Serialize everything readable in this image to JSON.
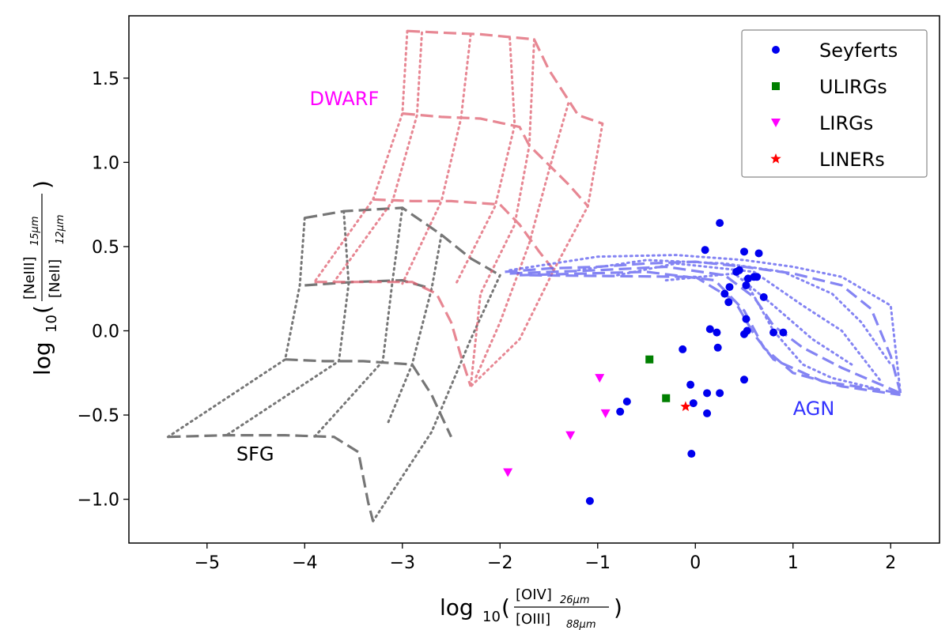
{
  "chart_data": {
    "type": "scatter",
    "title": "",
    "xlabel": {
      "prefix": "log",
      "base": "10",
      "numerator": "[OIV]",
      "numerator_sub": "26μm",
      "denominator": "[OIII]",
      "denominator_sub": "88μm"
    },
    "ylabel": {
      "prefix": "log",
      "base": "10",
      "numerator": "[NeIII]",
      "numerator_sub": "15μm",
      "denominator": "[NeII]",
      "denominator_sub": "12μm"
    },
    "xlim": [
      -5.8,
      2.5
    ],
    "ylim": [
      -1.26,
      1.87
    ],
    "xticks": [
      -5,
      -4,
      -3,
      -2,
      -1,
      0,
      1,
      2
    ],
    "xtick_labels": [
      "−5",
      "−4",
      "−3",
      "−2",
      "−1",
      "0",
      "1",
      "2"
    ],
    "yticks": [
      -1.0,
      -0.5,
      0.0,
      0.5,
      1.0,
      1.5
    ],
    "ytick_labels": [
      "−1.0",
      "−0.5",
      "0.0",
      "0.5",
      "1.0",
      "1.5"
    ],
    "legend_position": "top-right",
    "series": [
      {
        "name": "Seyferts",
        "marker": "circle",
        "color": "#0000ee",
        "points": [
          [
            0.25,
            0.64
          ],
          [
            0.1,
            0.48
          ],
          [
            0.5,
            0.47
          ],
          [
            0.65,
            0.46
          ],
          [
            0.45,
            0.36
          ],
          [
            0.42,
            0.35
          ],
          [
            0.6,
            0.32
          ],
          [
            0.63,
            0.32
          ],
          [
            0.54,
            0.31
          ],
          [
            0.52,
            0.27
          ],
          [
            0.35,
            0.26
          ],
          [
            0.3,
            0.22
          ],
          [
            0.7,
            0.2
          ],
          [
            0.34,
            0.17
          ],
          [
            0.52,
            0.07
          ],
          [
            0.15,
            0.01
          ],
          [
            0.22,
            -0.01
          ],
          [
            0.53,
            0.0
          ],
          [
            0.5,
            -0.02
          ],
          [
            0.8,
            -0.01
          ],
          [
            0.9,
            -0.01
          ],
          [
            0.23,
            -0.1
          ],
          [
            -0.13,
            -0.11
          ],
          [
            -0.05,
            -0.32
          ],
          [
            0.12,
            -0.37
          ],
          [
            0.25,
            -0.37
          ],
          [
            0.5,
            -0.29
          ],
          [
            -0.02,
            -0.43
          ],
          [
            -0.7,
            -0.42
          ],
          [
            -0.77,
            -0.48
          ],
          [
            0.12,
            -0.49
          ],
          [
            -0.04,
            -0.73
          ],
          [
            -1.08,
            -1.01
          ]
        ]
      },
      {
        "name": "ULIRGs",
        "marker": "square",
        "color": "#007f00",
        "points": [
          [
            -0.47,
            -0.17
          ],
          [
            -0.3,
            -0.4
          ]
        ]
      },
      {
        "name": "LIRGs",
        "marker": "triangle-down",
        "color": "#ff00ff",
        "points": [
          [
            -0.98,
            -0.28
          ],
          [
            -0.92,
            -0.49
          ],
          [
            -1.28,
            -0.62
          ],
          [
            -1.92,
            -0.84
          ]
        ]
      },
      {
        "name": "LINERs",
        "marker": "star",
        "color": "#ff0000",
        "points": [
          [
            -0.1,
            -0.45
          ]
        ]
      }
    ],
    "model_grids": [
      {
        "name": "SFG",
        "label": "SFG",
        "label_color": "#000000",
        "label_pos": [
          -4.7,
          -0.77
        ],
        "color": "#555555",
        "opacity": 0.8,
        "dashed": [
          [
            [
              -4.0,
              0.67
            ],
            [
              -3.6,
              0.71
            ],
            [
              -3.0,
              0.73
            ],
            [
              -2.6,
              0.57
            ],
            [
              -2.3,
              0.43
            ],
            [
              -2.0,
              0.33
            ]
          ],
          [
            [
              -4.0,
              0.27
            ],
            [
              -3.5,
              0.29
            ],
            [
              -3.0,
              0.3
            ],
            [
              -2.7,
              0.25
            ]
          ],
          [
            [
              -4.2,
              -0.17
            ],
            [
              -3.8,
              -0.18
            ],
            [
              -3.4,
              -0.18
            ],
            [
              -2.9,
              -0.2
            ],
            [
              -2.7,
              -0.38
            ],
            [
              -2.5,
              -0.63
            ]
          ],
          [
            [
              -5.4,
              -0.63
            ],
            [
              -4.8,
              -0.62
            ],
            [
              -4.2,
              -0.62
            ],
            [
              -3.7,
              -0.63
            ],
            [
              -3.45,
              -0.72
            ],
            [
              -3.35,
              -1.02
            ],
            [
              -3.3,
              -1.13
            ]
          ]
        ],
        "dotted": [
          [
            [
              -4.0,
              0.67
            ],
            [
              -4.05,
              0.27
            ],
            [
              -4.2,
              -0.17
            ],
            [
              -5.4,
              -0.63
            ]
          ],
          [
            [
              -3.6,
              0.71
            ],
            [
              -3.55,
              0.28
            ],
            [
              -3.65,
              -0.18
            ],
            [
              -4.8,
              -0.62
            ]
          ],
          [
            [
              -3.0,
              0.73
            ],
            [
              -3.1,
              0.3
            ],
            [
              -3.2,
              -0.18
            ],
            [
              -3.9,
              -0.63
            ]
          ],
          [
            [
              -2.6,
              0.57
            ],
            [
              -2.7,
              0.25
            ],
            [
              -2.9,
              -0.2
            ],
            [
              -3.15,
              -0.55
            ]
          ],
          [
            [
              -2.0,
              0.33
            ],
            [
              -2.3,
              -0.05
            ],
            [
              -2.7,
              -0.6
            ],
            [
              -3.3,
              -1.13
            ]
          ]
        ]
      },
      {
        "name": "DWARF",
        "label": "DWARF",
        "label_color": "#ff00ff",
        "label_pos": [
          -3.95,
          1.34
        ],
        "color": "#e06070",
        "opacity": 0.75,
        "dashed": [
          [
            [
              -2.95,
              1.78
            ],
            [
              -2.6,
              1.77
            ],
            [
              -2.2,
              1.76
            ],
            [
              -1.65,
              1.73
            ],
            [
              -1.5,
              1.55
            ],
            [
              -1.2,
              1.28
            ],
            [
              -0.95,
              1.23
            ]
          ],
          [
            [
              -3.0,
              1.29
            ],
            [
              -2.6,
              1.27
            ],
            [
              -2.2,
              1.26
            ],
            [
              -1.8,
              1.21
            ],
            [
              -1.7,
              1.1
            ],
            [
              -1.3,
              0.87
            ],
            [
              -1.1,
              0.74
            ]
          ],
          [
            [
              -3.3,
              0.78
            ],
            [
              -2.9,
              0.77
            ],
            [
              -2.5,
              0.77
            ],
            [
              -2.0,
              0.75
            ],
            [
              -1.8,
              0.63
            ],
            [
              -1.6,
              0.47
            ],
            [
              -1.45,
              0.36
            ]
          ],
          [
            [
              -3.9,
              0.29
            ],
            [
              -3.4,
              0.29
            ],
            [
              -2.9,
              0.29
            ],
            [
              -2.65,
              0.22
            ],
            [
              -2.5,
              0.05
            ],
            [
              -2.4,
              -0.15
            ],
            [
              -2.3,
              -0.33
            ]
          ]
        ],
        "dotted": [
          [
            [
              -2.95,
              1.78
            ],
            [
              -3.0,
              1.29
            ],
            [
              -3.3,
              0.78
            ],
            [
              -3.9,
              0.29
            ]
          ],
          [
            [
              -2.8,
              1.77
            ],
            [
              -2.85,
              1.28
            ],
            [
              -3.1,
              0.77
            ],
            [
              -3.7,
              0.29
            ]
          ],
          [
            [
              -2.3,
              1.76
            ],
            [
              -2.4,
              1.26
            ],
            [
              -2.6,
              0.77
            ],
            [
              -3.0,
              0.28
            ]
          ],
          [
            [
              -1.9,
              1.74
            ],
            [
              -1.85,
              1.22
            ],
            [
              -2.05,
              0.74
            ],
            [
              -2.45,
              0.28
            ]
          ],
          [
            [
              -1.65,
              1.73
            ],
            [
              -1.7,
              1.1
            ],
            [
              -1.85,
              0.63
            ],
            [
              -2.2,
              0.22
            ],
            [
              -2.3,
              -0.33
            ]
          ],
          [
            [
              -1.3,
              1.35
            ],
            [
              -1.5,
              0.95
            ],
            [
              -1.7,
              0.52
            ],
            [
              -2.0,
              0.05
            ],
            [
              -2.25,
              -0.28
            ]
          ],
          [
            [
              -0.95,
              1.23
            ],
            [
              -1.1,
              0.74
            ],
            [
              -1.45,
              0.36
            ],
            [
              -1.8,
              -0.05
            ],
            [
              -2.3,
              -0.33
            ]
          ]
        ]
      },
      {
        "name": "AGN",
        "label": "AGN",
        "label_color": "#3333ff",
        "label_pos": [
          1.0,
          -0.5
        ],
        "color": "#5b5bf0",
        "opacity": 0.75,
        "dashed": [
          [
            [
              -1.95,
              0.35
            ],
            [
              -1.5,
              0.37
            ],
            [
              -1.0,
              0.38
            ],
            [
              -0.5,
              0.4
            ],
            [
              0.0,
              0.41
            ],
            [
              0.5,
              0.38
            ],
            [
              1.0,
              0.34
            ],
            [
              1.5,
              0.27
            ],
            [
              1.8,
              0.13
            ],
            [
              2.0,
              -0.15
            ],
            [
              2.1,
              -0.37
            ]
          ],
          [
            [
              -1.9,
              0.34
            ],
            [
              -1.0,
              0.36
            ],
            [
              -0.3,
              0.38
            ],
            [
              0.3,
              0.33
            ],
            [
              0.6,
              0.2
            ],
            [
              0.8,
              0.03
            ],
            [
              1.1,
              -0.1
            ],
            [
              1.5,
              -0.22
            ],
            [
              2.1,
              -0.37
            ]
          ],
          [
            [
              -1.8,
              0.33
            ],
            [
              -0.5,
              0.35
            ],
            [
              0.2,
              0.3
            ],
            [
              0.5,
              0.12
            ],
            [
              0.7,
              -0.1
            ],
            [
              1.0,
              -0.25
            ],
            [
              1.5,
              -0.33
            ],
            [
              2.1,
              -0.38
            ]
          ],
          [
            [
              -1.7,
              0.33
            ],
            [
              0.0,
              0.32
            ],
            [
              0.4,
              0.18
            ],
            [
              0.6,
              -0.02
            ],
            [
              0.8,
              -0.17
            ],
            [
              1.3,
              -0.3
            ],
            [
              2.1,
              -0.37
            ]
          ]
        ],
        "dotted": [
          [
            [
              -1.9,
              0.36
            ],
            [
              -1.0,
              0.44
            ],
            [
              -0.2,
              0.45
            ],
            [
              0.5,
              0.42
            ],
            [
              1.0,
              0.38
            ],
            [
              1.5,
              0.32
            ],
            [
              2.0,
              0.15
            ],
            [
              2.1,
              -0.37
            ]
          ],
          [
            [
              -1.2,
              0.36
            ],
            [
              -0.5,
              0.42
            ],
            [
              0.3,
              0.4
            ],
            [
              0.9,
              0.35
            ],
            [
              1.4,
              0.22
            ],
            [
              1.7,
              0.05
            ],
            [
              2.0,
              -0.2
            ]
          ],
          [
            [
              -0.8,
              0.33
            ],
            [
              -0.2,
              0.4
            ],
            [
              0.6,
              0.35
            ],
            [
              1.1,
              0.15
            ],
            [
              1.5,
              0.0
            ],
            [
              1.9,
              -0.3
            ]
          ],
          [
            [
              -0.3,
              0.3
            ],
            [
              0.4,
              0.34
            ],
            [
              0.8,
              0.15
            ],
            [
              1.2,
              -0.05
            ],
            [
              1.6,
              -0.2
            ]
          ],
          [
            [
              0.5,
              0.31
            ],
            [
              0.8,
              0.0
            ],
            [
              1.1,
              -0.2
            ],
            [
              1.4,
              -0.28
            ],
            [
              1.9,
              -0.35
            ]
          ]
        ]
      }
    ]
  }
}
